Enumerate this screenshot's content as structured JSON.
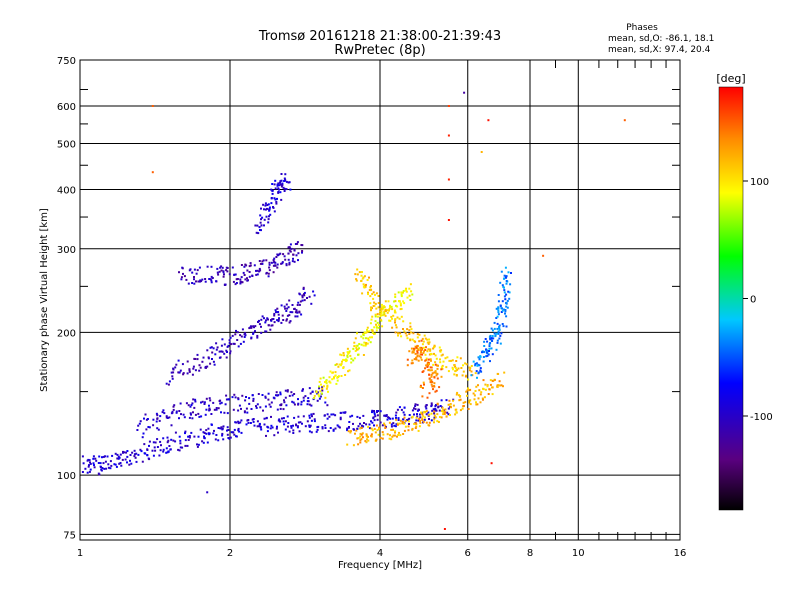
{
  "chart_data": {
    "type": "scatter",
    "title": "Tromsø 20161218 21:38:00-21:39:43",
    "subtitle": "RwPretec (8p)",
    "xlabel": "Frequency [MHz]",
    "ylabel": "Stationary phase Virtual Height [km]",
    "x_scale": "log",
    "y_scale": "log",
    "xlim": [
      1,
      16
    ],
    "ylim": [
      73,
      750
    ],
    "x_ticks": [
      1,
      2,
      4,
      6,
      8,
      10,
      16
    ],
    "x_tick_labels": [
      "1",
      "2",
      "4",
      "6",
      "8",
      "10",
      "16"
    ],
    "y_ticks": [
      75,
      100,
      200,
      300,
      400,
      500,
      600,
      750
    ],
    "y_tick_labels": [
      "75",
      "100",
      "200",
      "300",
      "400",
      "500",
      "600",
      "750"
    ],
    "grid": true,
    "stats": {
      "title": "Phases",
      "line_o": "mean, sd,O: -86.1, 18.1",
      "line_x": "mean, sd,X:  97.4, 20.4"
    },
    "colorbar": {
      "label": "[deg]",
      "range": [
        -180,
        180
      ],
      "ticks": [
        100,
        0,
        -100
      ],
      "tick_labels": [
        "100",
        "0",
        "-100"
      ]
    },
    "traces": [
      {
        "name": "o-low",
        "phase": -95,
        "points": [
          [
            1.02,
            105
          ],
          [
            1.1,
            105
          ],
          [
            1.2,
            108
          ],
          [
            1.35,
            112
          ],
          [
            1.5,
            116
          ],
          [
            1.7,
            120
          ],
          [
            1.9,
            123
          ],
          [
            2.1,
            125
          ],
          [
            2.4,
            127
          ],
          [
            2.7,
            128
          ],
          [
            3.0,
            129
          ],
          [
            3.4,
            130
          ],
          [
            3.8,
            131
          ],
          [
            4.2,
            132
          ],
          [
            4.6,
            134
          ],
          [
            5.0,
            136
          ],
          [
            5.5,
            139
          ]
        ]
      },
      {
        "name": "o-mid",
        "phase": -100,
        "points": [
          [
            1.3,
            125
          ],
          [
            1.5,
            133
          ],
          [
            1.7,
            138
          ],
          [
            1.9,
            141
          ],
          [
            2.2,
            142
          ],
          [
            2.5,
            144
          ],
          [
            2.8,
            146
          ],
          [
            3.1,
            147
          ]
        ]
      },
      {
        "name": "o-upper",
        "phase": -105,
        "points": [
          [
            1.5,
            160
          ],
          [
            1.7,
            172
          ],
          [
            1.9,
            182
          ],
          [
            2.1,
            195
          ],
          [
            2.3,
            205
          ],
          [
            2.5,
            215
          ],
          [
            2.7,
            225
          ],
          [
            2.9,
            240
          ]
        ]
      },
      {
        "name": "o-spread-a",
        "phase": -110,
        "points": [
          [
            1.6,
            265
          ],
          [
            1.8,
            265
          ],
          [
            2.0,
            262
          ],
          [
            2.2,
            268
          ],
          [
            2.4,
            275
          ],
          [
            2.6,
            290
          ],
          [
            2.8,
            300
          ]
        ]
      },
      {
        "name": "o-spread-b",
        "phase": -90,
        "points": [
          [
            2.3,
            330
          ],
          [
            2.4,
            370
          ],
          [
            2.5,
            400
          ],
          [
            2.6,
            420
          ]
        ]
      },
      {
        "name": "x-upper",
        "phase": 95,
        "points": [
          [
            3.0,
            150
          ],
          [
            3.2,
            160
          ],
          [
            3.4,
            172
          ],
          [
            3.6,
            185
          ],
          [
            3.8,
            200
          ],
          [
            4.0,
            215
          ],
          [
            4.3,
            230
          ],
          [
            4.6,
            245
          ]
        ]
      },
      {
        "name": "x-arc",
        "phase": 110,
        "points": [
          [
            3.6,
            270
          ],
          [
            3.8,
            240
          ],
          [
            4.0,
            220
          ],
          [
            4.4,
            205
          ],
          [
            4.8,
            190
          ],
          [
            5.2,
            178
          ],
          [
            5.6,
            170
          ],
          [
            6.2,
            165
          ]
        ]
      },
      {
        "name": "x-low",
        "phase": 120,
        "points": [
          [
            3.5,
            120
          ],
          [
            3.8,
            121
          ],
          [
            4.2,
            124
          ],
          [
            4.6,
            128
          ],
          [
            5.0,
            132
          ],
          [
            5.5,
            138
          ],
          [
            6.0,
            145
          ],
          [
            6.5,
            152
          ],
          [
            7.0,
            160
          ]
        ]
      },
      {
        "name": "x-cluster",
        "phase": 140,
        "points": [
          [
            4.6,
            175
          ],
          [
            4.8,
            185
          ],
          [
            5.0,
            170
          ],
          [
            5.2,
            160
          ],
          [
            4.9,
            150
          ]
        ]
      },
      {
        "name": "mixed-high",
        "phase": -40,
        "points": [
          [
            6.2,
            165
          ],
          [
            6.5,
            180
          ],
          [
            6.8,
            195
          ],
          [
            7.0,
            210
          ],
          [
            7.1,
            235
          ],
          [
            7.2,
            270
          ]
        ]
      }
    ],
    "scatter_outliers": [
      {
        "x": 1.4,
        "y": 600,
        "phase": 150
      },
      {
        "x": 1.4,
        "y": 435,
        "phase": 150
      },
      {
        "x": 5.5,
        "y": 600,
        "phase": 160
      },
      {
        "x": 5.5,
        "y": 520,
        "phase": 170
      },
      {
        "x": 5.5,
        "y": 420,
        "phase": 170
      },
      {
        "x": 5.5,
        "y": 345,
        "phase": 175
      },
      {
        "x": 5.9,
        "y": 640,
        "phase": -120
      },
      {
        "x": 6.4,
        "y": 480,
        "phase": 120
      },
      {
        "x": 6.6,
        "y": 560,
        "phase": 175
      },
      {
        "x": 8.5,
        "y": 290,
        "phase": 150
      },
      {
        "x": 12.4,
        "y": 560,
        "phase": 150
      },
      {
        "x": 1.8,
        "y": 92,
        "phase": -100
      },
      {
        "x": 5.4,
        "y": 77,
        "phase": 175
      },
      {
        "x": 6.7,
        "y": 106,
        "phase": 175
      }
    ]
  }
}
